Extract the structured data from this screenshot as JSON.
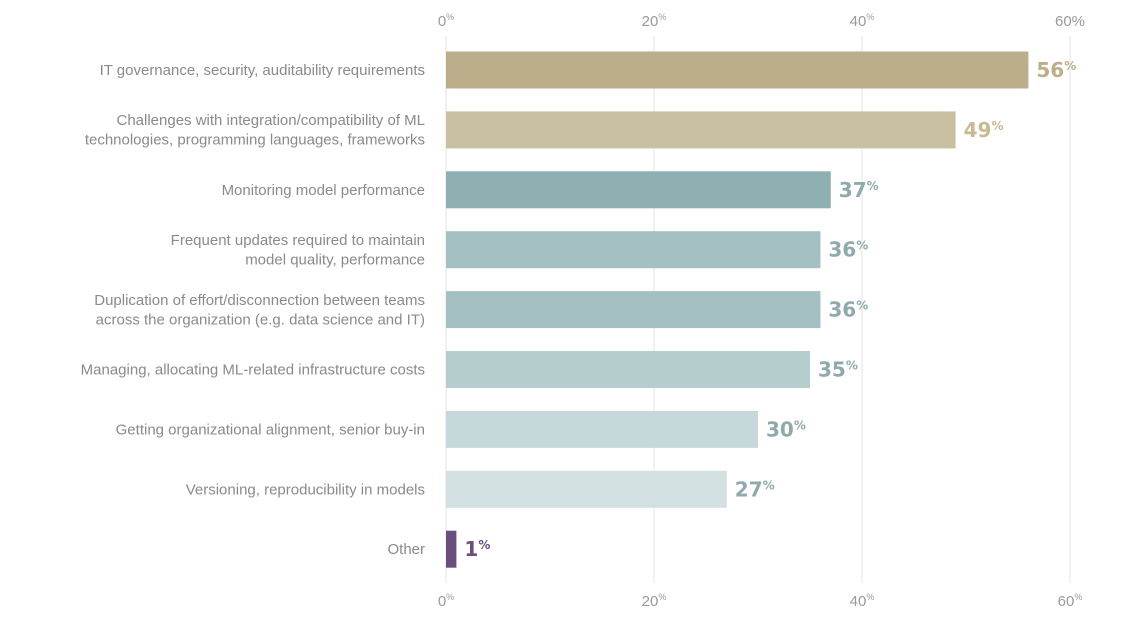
{
  "chart_data": {
    "type": "bar",
    "orientation": "horizontal",
    "categories": [
      [
        "IT governance, security, auditability requirements"
      ],
      [
        "Challenges with integration/compatibility of ML",
        "technologies, programming languages, frameworks"
      ],
      [
        "Monitoring model performance"
      ],
      [
        "Frequent updates required to maintain",
        "model quality, performance"
      ],
      [
        "Duplication of effort/disconnection between teams",
        "across the organization (e.g. data science and IT)"
      ],
      [
        "Managing, allocating ML-related infrastructure costs"
      ],
      [
        "Getting organizational alignment, senior buy-in"
      ],
      [
        "Versioning, reproducibility in models"
      ],
      [
        "Other"
      ]
    ],
    "values": [
      56,
      49,
      37,
      36,
      36,
      35,
      30,
      27,
      1
    ],
    "bar_colors": [
      "#bcae8b",
      "#c9c0a1",
      "#8fb0b3",
      "#a4c0c2",
      "#a4c0c2",
      "#b6cdce",
      "#c6d8d9",
      "#d3e0e1",
      "#6a4f7e"
    ],
    "label_colors": [
      "#bcae8b",
      "#c9b993",
      "#8fa9ad",
      "#8fa9ad",
      "#8fa9ad",
      "#8fa9ad",
      "#8fa9ad",
      "#8fa9ad",
      "#6a4f7e"
    ],
    "value_suffix": "%",
    "xlim": [
      0,
      60
    ],
    "ticks": [
      0,
      20,
      40,
      60
    ],
    "tick_suffix_small": "%",
    "top_axis_last_label": "60%",
    "grid": true,
    "gridline_color": "#e3e3e3",
    "title": "",
    "xlabel": "",
    "ylabel": ""
  }
}
